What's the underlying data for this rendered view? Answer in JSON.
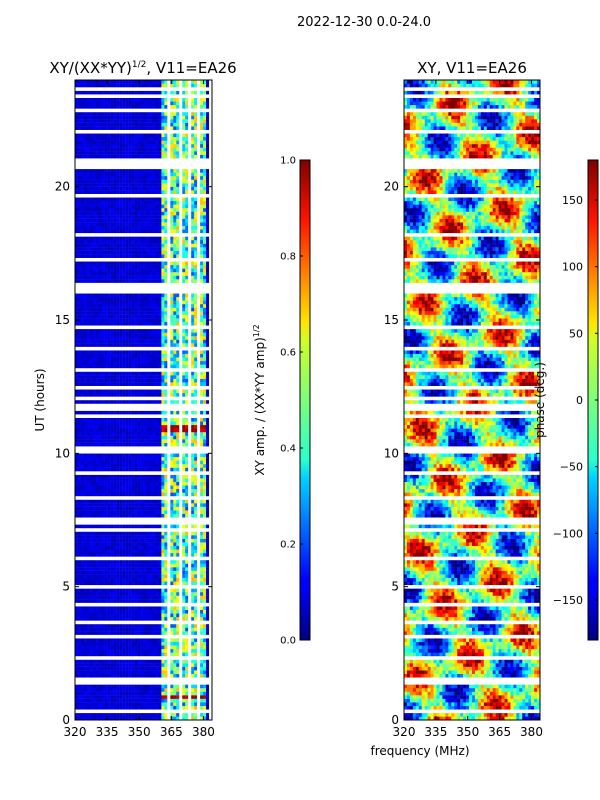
{
  "figure": {
    "suptitle": "2022-12-30 0.0-24.0",
    "shared_xlabel": "frequency (MHz)"
  },
  "chart_data": [
    {
      "type": "heatmap",
      "title": "XY/(XX*YY)",
      "title_superscript": "1/2",
      "title_suffix": ", V11=EA26",
      "xlabel": "",
      "ylabel": "UT (hours)",
      "xlim": [
        320,
        384
      ],
      "ylim": [
        0,
        24
      ],
      "xticks": [
        320,
        335,
        350,
        365,
        380
      ],
      "yticks": [
        0,
        5,
        10,
        15,
        20
      ],
      "xtick_labels": [
        "320",
        "335",
        "350",
        "365",
        "380"
      ],
      "ytick_labels": [
        "0",
        "5",
        "10",
        "15",
        "20"
      ],
      "colormap": "jet",
      "quantity": "normalized XY amplitude",
      "typical_value_below_361MHz": 0.05,
      "typical_value_361_to_380MHz": 0.45,
      "high_value_bands_hours": [
        [
          10.75,
          11.1
        ],
        [
          0.75,
          0.95
        ]
      ],
      "high_value_band_value": 0.9,
      "flagged_rows_hours": [
        0.3,
        1.45,
        1.55,
        2.3,
        3.15,
        3.6,
        4.3,
        5.05,
        6.0,
        7.15,
        7.45,
        7.55,
        8.3,
        9.2,
        10.0,
        10.2,
        11.35,
        11.45,
        11.7,
        11.8,
        12.0,
        12.5,
        13.1,
        13.9,
        14.7,
        16.05,
        16.2,
        16.3,
        17.3,
        18.25,
        19.6,
        20.7,
        20.85,
        20.95,
        22.1,
        22.9,
        23.4,
        23.7
      ],
      "flagged_channel_gaps_MHz": [
        363.5,
        369.5,
        373.5,
        377.5
      ]
    },
    {
      "type": "colorbar",
      "label": "XY amp. / (XX*YY amp)",
      "label_superscript": "1/2",
      "colormap": "jet",
      "range": [
        0.0,
        1.0
      ],
      "ticks": [
        "0.0",
        "0.2",
        "0.4",
        "0.6",
        "0.8",
        "1.0"
      ]
    },
    {
      "type": "heatmap",
      "title": "XY, V11=EA26",
      "xlabel": "frequency (MHz)",
      "ylabel": "",
      "xlim": [
        320,
        384
      ],
      "ylim": [
        0,
        24
      ],
      "xticks": [
        320,
        335,
        350,
        365,
        380
      ],
      "yticks": [
        0,
        5,
        10,
        15,
        20
      ],
      "xtick_labels": [
        "320",
        "335",
        "350",
        "365",
        "380"
      ],
      "ytick_labels": [
        "0",
        "5",
        "10",
        "15",
        "20"
      ],
      "colormap": "jet",
      "quantity": "XY phase (deg)",
      "value_range_deg": [
        -180,
        180
      ],
      "flagged_rows_hours": [
        0.3,
        1.45,
        1.55,
        2.3,
        3.15,
        3.6,
        4.3,
        5.05,
        6.0,
        7.15,
        7.45,
        7.55,
        8.3,
        9.2,
        10.0,
        10.2,
        11.35,
        11.45,
        11.7,
        11.8,
        12.0,
        12.5,
        13.1,
        13.9,
        14.7,
        16.05,
        16.2,
        16.3,
        17.3,
        18.25,
        19.6,
        20.7,
        20.85,
        20.95,
        22.1,
        22.9,
        23.4,
        23.7
      ]
    },
    {
      "type": "colorbar",
      "label": "phase (deg.)",
      "colormap": "jet",
      "range": [
        -180,
        180
      ],
      "tick_values": [
        -150,
        -100,
        -50,
        0,
        50,
        100,
        150
      ],
      "ticks": [
        "−150",
        "−100",
        "−50",
        "0",
        "50",
        "100",
        "150"
      ]
    }
  ]
}
